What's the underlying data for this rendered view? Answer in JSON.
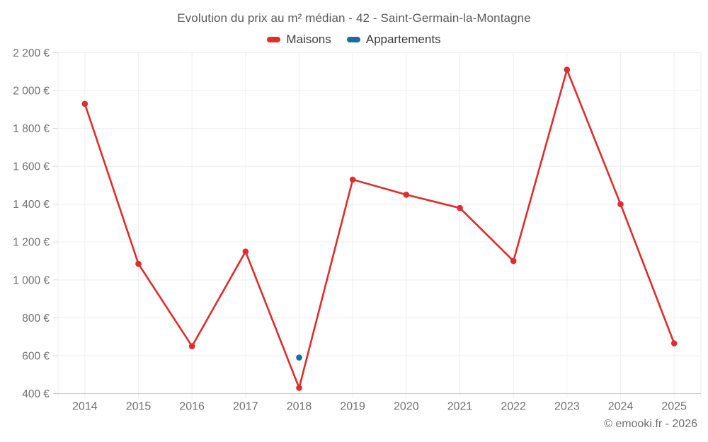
{
  "header": {
    "title": "Evolution du prix au m² médian - 42 - Saint-Germain-la-Montagne"
  },
  "legend": {
    "items": [
      {
        "label": "Maisons",
        "color": "#e02c2d"
      },
      {
        "label": "Appartements",
        "color": "#1a6e9d"
      }
    ]
  },
  "footer": {
    "copyright": "© emooki.fr - 2026"
  },
  "chart_data": {
    "type": "line",
    "title": "Evolution du prix au m² médian - 42 - Saint-Germain-la-Montagne",
    "xlabel": "",
    "ylabel": "",
    "categories": [
      "2014",
      "2015",
      "2016",
      "2017",
      "2018",
      "2019",
      "2020",
      "2021",
      "2022",
      "2023",
      "2024",
      "2025"
    ],
    "series": [
      {
        "name": "Maisons",
        "color": "#e02c2d",
        "values": [
          1930,
          1085,
          650,
          1150,
          430,
          1530,
          1450,
          1380,
          1100,
          2110,
          1400,
          665
        ]
      },
      {
        "name": "Appartements",
        "color": "#1a6e9d",
        "values": [
          null,
          null,
          null,
          null,
          590,
          null,
          null,
          null,
          null,
          null,
          null,
          null
        ]
      }
    ],
    "ylim": [
      400,
      2200
    ],
    "ytick_step": 200,
    "yticks": [
      {
        "value": 400,
        "label": "400 €"
      },
      {
        "value": 600,
        "label": "600 €"
      },
      {
        "value": 800,
        "label": "800 €"
      },
      {
        "value": 1000,
        "label": "1 000 €"
      },
      {
        "value": 1200,
        "label": "1 200 €"
      },
      {
        "value": 1400,
        "label": "1 400 €"
      },
      {
        "value": 1600,
        "label": "1 600 €"
      },
      {
        "value": 1800,
        "label": "1 800 €"
      },
      {
        "value": 2000,
        "label": "2 000 €"
      },
      {
        "value": 2200,
        "label": "2 200 €"
      }
    ],
    "grid": true,
    "legend_position": "top",
    "currency": "€",
    "styles": {
      "gridline_color": "#eeeeee",
      "axis_line_color": "#cccccc",
      "tick_color": "#d9d9d9",
      "axis_label_color": "#707070"
    }
  }
}
